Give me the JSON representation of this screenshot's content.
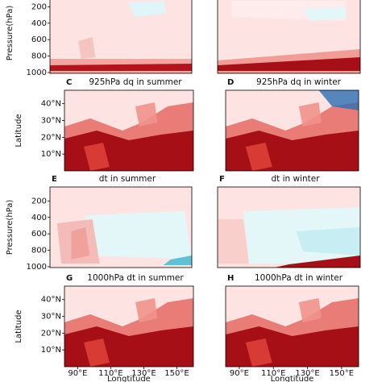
{
  "chart_data": [
    {
      "type": "heatmap",
      "y_label": "Pressure(hPa)",
      "ylim": [
        1010,
        30
      ],
      "yticks": [
        200,
        400,
        600,
        800,
        1000
      ]
    },
    {
      "type": "heatmap"
    },
    {
      "type": "heatmap",
      "panel_label": "C",
      "title": "925hPa dq in summer",
      "y_label": "Latitude",
      "ylim": [
        0,
        48
      ],
      "yticks": [
        {
          "value": 40,
          "label": "40°N"
        },
        {
          "value": 30,
          "label": "30°N"
        },
        {
          "value": 20,
          "label": "20°N"
        },
        {
          "value": 10,
          "label": "10°N"
        }
      ]
    },
    {
      "type": "heatmap",
      "panel_label": "D",
      "title": "925hPa dq in winter"
    },
    {
      "type": "heatmap",
      "panel_label": "E",
      "title": "dt in summer",
      "y_label": "Pressure(hPa)",
      "ylim": [
        1010,
        30
      ],
      "yticks": [
        200,
        400,
        600,
        800,
        1000
      ]
    },
    {
      "type": "heatmap",
      "panel_label": "F",
      "title": "dt in winter"
    },
    {
      "type": "heatmap",
      "panel_label": "G",
      "title": "1000hPa dt in summer",
      "y_label": "Latitude",
      "ylim": [
        0,
        48
      ],
      "yticks": [
        {
          "value": 40,
          "label": "40°N"
        },
        {
          "value": 30,
          "label": "30°N"
        },
        {
          "value": 20,
          "label": "20°N"
        },
        {
          "value": 10,
          "label": "10°N"
        }
      ],
      "x_label": "Longtitude",
      "xlim": [
        82,
        160
      ],
      "xticks": [
        {
          "value": 90,
          "label": "90°E"
        },
        {
          "value": 110,
          "label": "110°E"
        },
        {
          "value": 130,
          "label": "130°E"
        },
        {
          "value": 150,
          "label": "150°E"
        }
      ]
    },
    {
      "type": "heatmap",
      "panel_label": "H",
      "title": "1000hPa dt in winter",
      "x_label": "Longtitude",
      "xlim": [
        82,
        160
      ],
      "xticks": [
        {
          "value": 90,
          "label": "90°E"
        },
        {
          "value": 110,
          "label": "110°E"
        },
        {
          "value": 130,
          "label": "130°E"
        },
        {
          "value": 150,
          "label": "150°E"
        }
      ]
    }
  ]
}
